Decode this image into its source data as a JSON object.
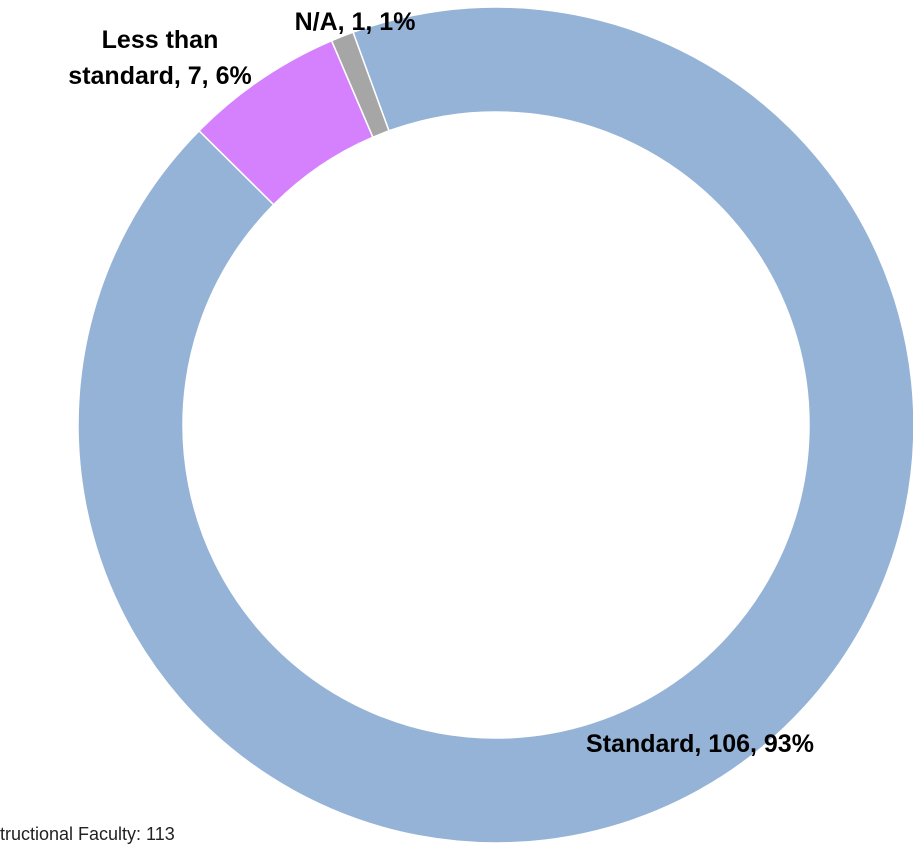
{
  "chart_data": {
    "type": "donut",
    "categories": [
      "Standard",
      "Less than standard",
      "N/A"
    ],
    "values": [
      106,
      7,
      1
    ],
    "value_labels": [
      "Standard, 106, 93%",
      "Less than standard, 7, 6%",
      "N/A, 1, 1%"
    ],
    "colors": [
      "#95b3d7",
      "#d580fd",
      "#a6a6a6"
    ],
    "note": "tructional Faculty: 113"
  }
}
